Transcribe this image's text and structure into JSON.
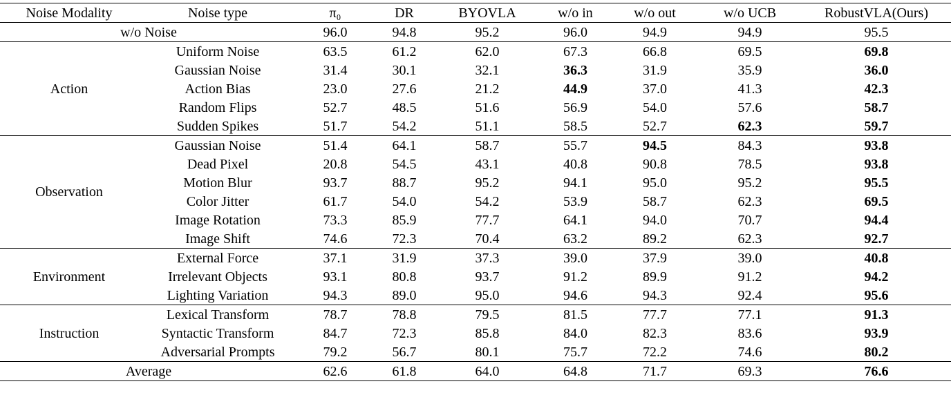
{
  "table": {
    "header": [
      "Noise Modality",
      "Noise type",
      "π₀",
      "DR",
      "BYOVLA",
      "w/o in",
      "w/o out",
      "w/o UCB",
      "RobustVLA(Ours)"
    ],
    "baseline": {
      "label": "w/o Noise",
      "values": [
        "96.0",
        "94.8",
        "95.2",
        "96.0",
        "94.9",
        "94.9",
        "95.5"
      ],
      "bold": []
    },
    "groups": [
      {
        "modality": "Action",
        "rows": [
          {
            "type": "Uniform Noise",
            "values": [
              "63.5",
              "61.2",
              "62.0",
              "67.3",
              "66.8",
              "69.5",
              "69.8"
            ],
            "bold": [
              6
            ]
          },
          {
            "type": "Gaussian Noise",
            "values": [
              "31.4",
              "30.1",
              "32.1",
              "36.3",
              "31.9",
              "35.9",
              "36.0"
            ],
            "bold": [
              3,
              6
            ]
          },
          {
            "type": "Action Bias",
            "values": [
              "23.0",
              "27.6",
              "21.2",
              "44.9",
              "37.0",
              "41.3",
              "42.3"
            ],
            "bold": [
              3,
              6
            ]
          },
          {
            "type": "Random Flips",
            "values": [
              "52.7",
              "48.5",
              "51.6",
              "56.9",
              "54.0",
              "57.6",
              "58.7"
            ],
            "bold": [
              6
            ]
          },
          {
            "type": "Sudden Spikes",
            "values": [
              "51.7",
              "54.2",
              "51.1",
              "58.5",
              "52.7",
              "62.3",
              "59.7"
            ],
            "bold": [
              5,
              6
            ]
          }
        ]
      },
      {
        "modality": "Observation",
        "rows": [
          {
            "type": "Gaussian Noise",
            "values": [
              "51.4",
              "64.1",
              "58.7",
              "55.7",
              "94.5",
              "84.3",
              "93.8"
            ],
            "bold": [
              4,
              6
            ]
          },
          {
            "type": "Dead Pixel",
            "values": [
              "20.8",
              "54.5",
              "43.1",
              "40.8",
              "90.8",
              "78.5",
              "93.8"
            ],
            "bold": [
              6
            ]
          },
          {
            "type": "Motion Blur",
            "values": [
              "93.7",
              "88.7",
              "95.2",
              "94.1",
              "95.0",
              "95.2",
              "95.5"
            ],
            "bold": [
              6
            ]
          },
          {
            "type": "Color Jitter",
            "values": [
              "61.7",
              "54.0",
              "54.2",
              "53.9",
              "58.7",
              "62.3",
              "69.5"
            ],
            "bold": [
              6
            ]
          },
          {
            "type": "Image Rotation",
            "values": [
              "73.3",
              "85.9",
              "77.7",
              "64.1",
              "94.0",
              "70.7",
              "94.4"
            ],
            "bold": [
              6
            ]
          },
          {
            "type": "Image Shift",
            "values": [
              "74.6",
              "72.3",
              "70.4",
              "63.2",
              "89.2",
              "62.3",
              "92.7"
            ],
            "bold": [
              6
            ]
          }
        ]
      },
      {
        "modality": "Environment",
        "rows": [
          {
            "type": "External Force",
            "values": [
              "37.1",
              "31.9",
              "37.3",
              "39.0",
              "37.9",
              "39.0",
              "40.8"
            ],
            "bold": [
              6
            ]
          },
          {
            "type": "Irrelevant Objects",
            "values": [
              "93.1",
              "80.8",
              "93.7",
              "91.2",
              "89.9",
              "91.2",
              "94.2"
            ],
            "bold": [
              6
            ]
          },
          {
            "type": "Lighting Variation",
            "values": [
              "94.3",
              "89.0",
              "95.0",
              "94.6",
              "94.3",
              "92.4",
              "95.6"
            ],
            "bold": [
              6
            ]
          }
        ]
      },
      {
        "modality": "Instruction",
        "rows": [
          {
            "type": "Lexical Transform",
            "values": [
              "78.7",
              "78.8",
              "79.5",
              "81.5",
              "77.7",
              "77.1",
              "91.3"
            ],
            "bold": [
              6
            ]
          },
          {
            "type": "Syntactic Transform",
            "values": [
              "84.7",
              "72.3",
              "85.8",
              "84.0",
              "82.3",
              "83.6",
              "93.9"
            ],
            "bold": [
              6
            ]
          },
          {
            "type": "Adversarial Prompts",
            "values": [
              "79.2",
              "56.7",
              "80.1",
              "75.7",
              "72.2",
              "74.6",
              "80.2"
            ],
            "bold": [
              6
            ]
          }
        ]
      }
    ],
    "average": {
      "label": "Average",
      "values": [
        "62.6",
        "61.8",
        "64.0",
        "64.8",
        "71.7",
        "69.3",
        "76.6"
      ],
      "bold": [
        6
      ]
    }
  }
}
